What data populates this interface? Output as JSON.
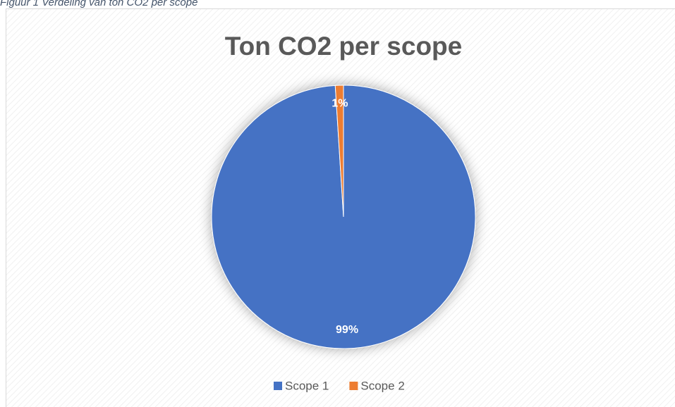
{
  "caption": "Figuur 1 Verdeling van ton CO2 per scope",
  "chart_data": {
    "type": "pie",
    "title": "Ton CO2 per scope",
    "categories": [
      "Scope 1",
      "Scope 2"
    ],
    "values": [
      99,
      1
    ],
    "value_labels": [
      "99%",
      "1%"
    ],
    "colors": [
      "#4472c4",
      "#ed7d31"
    ],
    "legend": "bottom"
  }
}
